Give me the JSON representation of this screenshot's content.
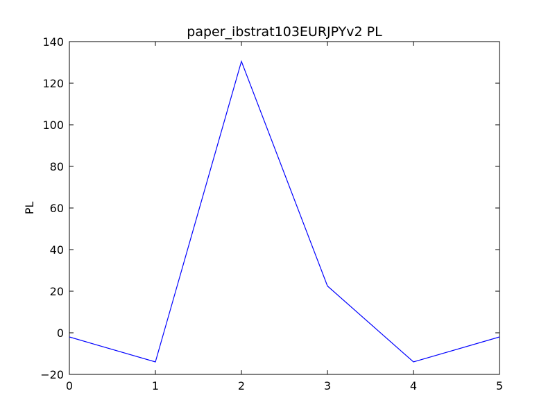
{
  "chart_data": {
    "type": "line",
    "title": "paper_ibstrat103EURJPYv2 PL",
    "xlabel": "",
    "ylabel": "PL",
    "xlim": [
      0,
      5
    ],
    "ylim": [
      -20,
      140
    ],
    "x_ticks": [
      0,
      1,
      2,
      3,
      4,
      5
    ],
    "y_ticks": [
      -20,
      0,
      20,
      40,
      60,
      80,
      100,
      120,
      140
    ],
    "grid": false,
    "legend": "none",
    "series": [
      {
        "x": [
          0,
          1,
          2,
          3,
          4,
          5
        ],
        "values": [
          -2,
          -14,
          130.5,
          22.5,
          -14,
          -2
        ]
      }
    ],
    "colors": {
      "line": "#0000ff",
      "axes": "#000000",
      "background": "#ffffff"
    }
  }
}
